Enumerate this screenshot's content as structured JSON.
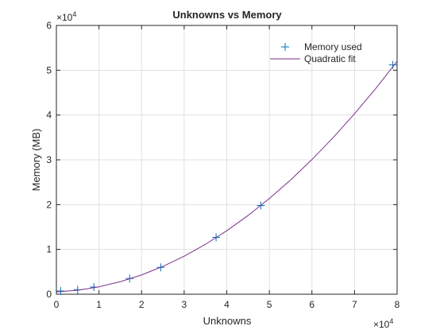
{
  "chart_data": {
    "type": "scatter-fit",
    "title": "Unknowns vs Memory",
    "x_label": "Unknowns",
    "y_label": "Memory (MB)",
    "x_multiplier": "×10",
    "x_exponent": "4",
    "y_multiplier": "×10",
    "y_exponent": "4",
    "series": [
      {
        "name": "Memory used",
        "color": "#0072BD",
        "marker": "+",
        "x": [
          0.1,
          0.5,
          0.88,
          1.72,
          2.45,
          3.75,
          4.8,
          7.9
        ],
        "values": [
          0.07,
          0.1,
          0.16,
          0.35,
          0.6,
          1.27,
          1.98,
          5.12
        ]
      },
      {
        "name": "Quadratic fit",
        "color": "#7E2F8E",
        "marker": "line",
        "x": [
          0,
          0.5,
          1,
          1.5,
          2,
          2.5,
          3,
          3.5,
          4,
          4.5,
          5,
          5.5,
          6,
          6.5,
          7,
          7.5,
          8
        ],
        "values": [
          0.05,
          0.089,
          0.165,
          0.28,
          0.431,
          0.621,
          0.849,
          1.114,
          1.417,
          1.758,
          2.137,
          2.552,
          3.006,
          3.498,
          4.028,
          4.595,
          5.2
        ]
      }
    ],
    "xlim": [
      0,
      8
    ],
    "xticks": [
      0,
      1,
      2,
      3,
      4,
      5,
      6,
      7,
      8
    ],
    "ylim": [
      0,
      6
    ],
    "yticks": [
      0,
      1,
      2,
      3,
      4,
      5,
      6
    ],
    "grid": true,
    "legend": "top-right"
  }
}
